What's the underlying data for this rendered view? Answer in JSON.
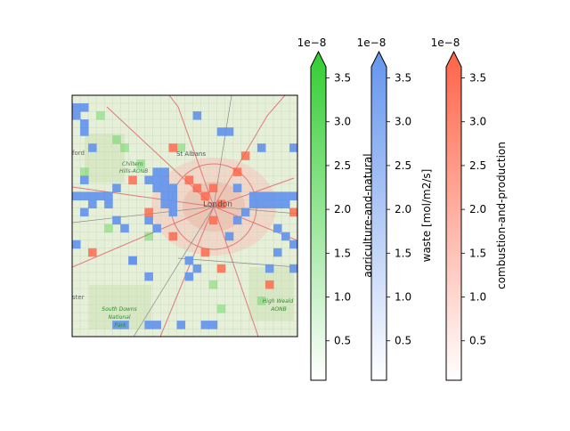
{
  "map": {
    "place_labels": [
      {
        "text": "St Albans"
      },
      {
        "text": "London"
      },
      {
        "text": "Chiltern Hills AONB"
      },
      {
        "text": "South Downs National Park"
      },
      {
        "text": "High Weald AONB"
      },
      {
        "text": "ford"
      },
      {
        "text": "ster"
      }
    ],
    "colors": {
      "agriculture": "#32cd32",
      "waste": "#6495ed",
      "combustion": "#ff6347",
      "basemap_land": "#e6efd8",
      "urban": "#f2d2c6"
    }
  },
  "colorbars": [
    {
      "label": "agriculture-and-natural",
      "exponent": "1e−8",
      "ticks": [
        "0.5",
        "1.0",
        "1.5",
        "2.0",
        "2.5",
        "3.0",
        "3.5"
      ],
      "tick_values": [
        0.5,
        1.0,
        1.5,
        2.0,
        2.5,
        3.0,
        3.5
      ],
      "vmin": 0.05,
      "vmax": 3.8,
      "color": "#32cd32",
      "extend": "max"
    },
    {
      "label": "waste [mol/m2/s]",
      "exponent": "1e−8",
      "ticks": [
        "0.5",
        "1.0",
        "1.5",
        "2.0",
        "2.5",
        "3.0",
        "3.5"
      ],
      "tick_values": [
        0.5,
        1.0,
        1.5,
        2.0,
        2.5,
        3.0,
        3.5
      ],
      "vmin": 0.05,
      "vmax": 3.8,
      "color": "#6495ed",
      "extend": "max"
    },
    {
      "label": "combustion-and-production",
      "exponent": "1e−8",
      "ticks": [
        "0.5",
        "1.0",
        "1.5",
        "2.0",
        "2.5",
        "3.0",
        "3.5"
      ],
      "tick_values": [
        0.5,
        1.0,
        1.5,
        2.0,
        2.5,
        3.0,
        3.5
      ],
      "vmin": 0.05,
      "vmax": 3.8,
      "color": "#ff6347",
      "extend": "max"
    }
  ]
}
